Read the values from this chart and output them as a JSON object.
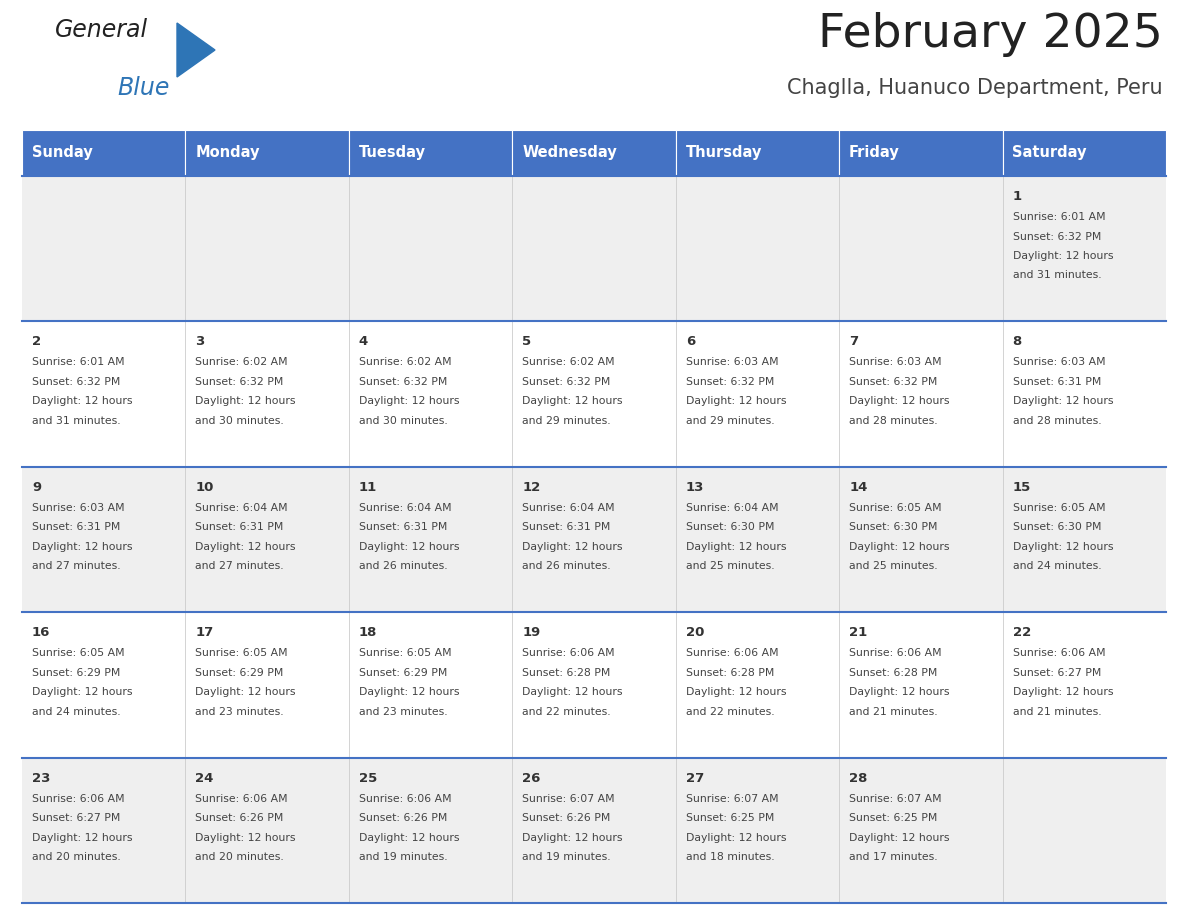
{
  "title": "February 2025",
  "subtitle": "Chaglla, Huanuco Department, Peru",
  "header_bg": "#4472C4",
  "header_text_color": "#FFFFFF",
  "day_headers": [
    "Sunday",
    "Monday",
    "Tuesday",
    "Wednesday",
    "Thursday",
    "Friday",
    "Saturday"
  ],
  "row_bg_even": "#EFEFEF",
  "row_bg_odd": "#FFFFFF",
  "cell_border_color": "#4472C4",
  "cell_divider_color": "#CCCCCC",
  "day_number_color": "#333333",
  "day_info_color": "#444444",
  "title_color": "#222222",
  "subtitle_color": "#444444",
  "calendar_data": [
    [
      null,
      null,
      null,
      null,
      null,
      null,
      {
        "day": 1,
        "sunrise": "6:01 AM",
        "sunset": "6:32 PM",
        "daylight": "12 hours and 31 minutes."
      }
    ],
    [
      {
        "day": 2,
        "sunrise": "6:01 AM",
        "sunset": "6:32 PM",
        "daylight": "12 hours and 31 minutes."
      },
      {
        "day": 3,
        "sunrise": "6:02 AM",
        "sunset": "6:32 PM",
        "daylight": "12 hours and 30 minutes."
      },
      {
        "day": 4,
        "sunrise": "6:02 AM",
        "sunset": "6:32 PM",
        "daylight": "12 hours and 30 minutes."
      },
      {
        "day": 5,
        "sunrise": "6:02 AM",
        "sunset": "6:32 PM",
        "daylight": "12 hours and 29 minutes."
      },
      {
        "day": 6,
        "sunrise": "6:03 AM",
        "sunset": "6:32 PM",
        "daylight": "12 hours and 29 minutes."
      },
      {
        "day": 7,
        "sunrise": "6:03 AM",
        "sunset": "6:32 PM",
        "daylight": "12 hours and 28 minutes."
      },
      {
        "day": 8,
        "sunrise": "6:03 AM",
        "sunset": "6:31 PM",
        "daylight": "12 hours and 28 minutes."
      }
    ],
    [
      {
        "day": 9,
        "sunrise": "6:03 AM",
        "sunset": "6:31 PM",
        "daylight": "12 hours and 27 minutes."
      },
      {
        "day": 10,
        "sunrise": "6:04 AM",
        "sunset": "6:31 PM",
        "daylight": "12 hours and 27 minutes."
      },
      {
        "day": 11,
        "sunrise": "6:04 AM",
        "sunset": "6:31 PM",
        "daylight": "12 hours and 26 minutes."
      },
      {
        "day": 12,
        "sunrise": "6:04 AM",
        "sunset": "6:31 PM",
        "daylight": "12 hours and 26 minutes."
      },
      {
        "day": 13,
        "sunrise": "6:04 AM",
        "sunset": "6:30 PM",
        "daylight": "12 hours and 25 minutes."
      },
      {
        "day": 14,
        "sunrise": "6:05 AM",
        "sunset": "6:30 PM",
        "daylight": "12 hours and 25 minutes."
      },
      {
        "day": 15,
        "sunrise": "6:05 AM",
        "sunset": "6:30 PM",
        "daylight": "12 hours and 24 minutes."
      }
    ],
    [
      {
        "day": 16,
        "sunrise": "6:05 AM",
        "sunset": "6:29 PM",
        "daylight": "12 hours and 24 minutes."
      },
      {
        "day": 17,
        "sunrise": "6:05 AM",
        "sunset": "6:29 PM",
        "daylight": "12 hours and 23 minutes."
      },
      {
        "day": 18,
        "sunrise": "6:05 AM",
        "sunset": "6:29 PM",
        "daylight": "12 hours and 23 minutes."
      },
      {
        "day": 19,
        "sunrise": "6:06 AM",
        "sunset": "6:28 PM",
        "daylight": "12 hours and 22 minutes."
      },
      {
        "day": 20,
        "sunrise": "6:06 AM",
        "sunset": "6:28 PM",
        "daylight": "12 hours and 22 minutes."
      },
      {
        "day": 21,
        "sunrise": "6:06 AM",
        "sunset": "6:28 PM",
        "daylight": "12 hours and 21 minutes."
      },
      {
        "day": 22,
        "sunrise": "6:06 AM",
        "sunset": "6:27 PM",
        "daylight": "12 hours and 21 minutes."
      }
    ],
    [
      {
        "day": 23,
        "sunrise": "6:06 AM",
        "sunset": "6:27 PM",
        "daylight": "12 hours and 20 minutes."
      },
      {
        "day": 24,
        "sunrise": "6:06 AM",
        "sunset": "6:26 PM",
        "daylight": "12 hours and 20 minutes."
      },
      {
        "day": 25,
        "sunrise": "6:06 AM",
        "sunset": "6:26 PM",
        "daylight": "12 hours and 19 minutes."
      },
      {
        "day": 26,
        "sunrise": "6:07 AM",
        "sunset": "6:26 PM",
        "daylight": "12 hours and 19 minutes."
      },
      {
        "day": 27,
        "sunrise": "6:07 AM",
        "sunset": "6:25 PM",
        "daylight": "12 hours and 18 minutes."
      },
      {
        "day": 28,
        "sunrise": "6:07 AM",
        "sunset": "6:25 PM",
        "daylight": "12 hours and 17 minutes."
      },
      null
    ]
  ],
  "logo_text_general": "General",
  "logo_text_blue": "Blue",
  "logo_color_general": "#222222",
  "logo_color_blue": "#2E75B6",
  "logo_triangle_color": "#2E75B6",
  "fig_width": 11.88,
  "fig_height": 9.18,
  "dpi": 100
}
